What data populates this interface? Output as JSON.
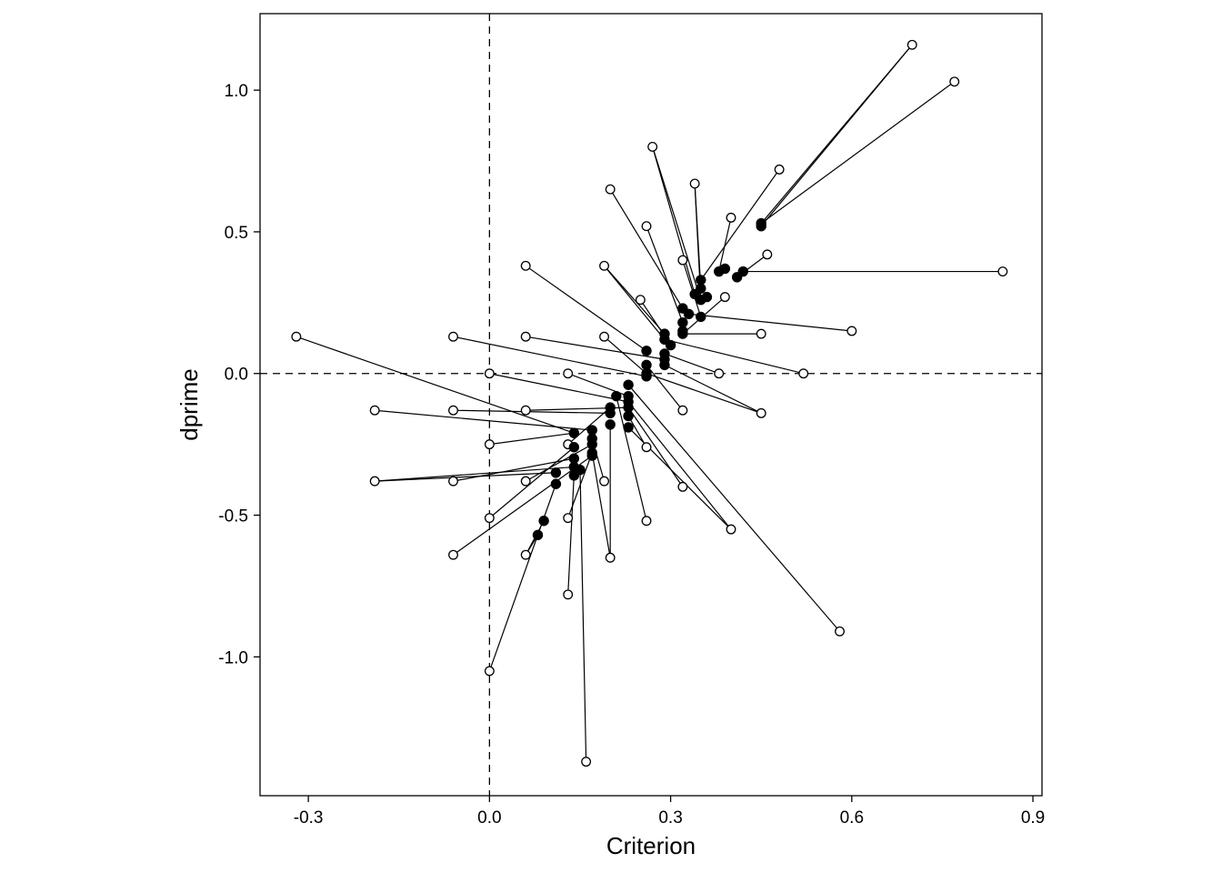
{
  "chart_data": {
    "type": "scatter",
    "xlabel": "Criterion",
    "ylabel": "dprime",
    "xlim": [
      -0.38,
      0.915
    ],
    "ylim": [
      -1.49,
      1.27
    ],
    "xticks": [
      -0.3,
      0.0,
      0.3,
      0.6,
      0.9
    ],
    "xtick_labels": [
      "-0.3",
      "0.0",
      "0.3",
      "0.6",
      "0.9"
    ],
    "yticks": [
      -1.0,
      -0.5,
      0.0,
      0.5,
      1.0
    ],
    "ytick_labels": [
      "-1.0",
      "-0.5",
      "0.0",
      "0.5",
      "1.0"
    ],
    "reference_lines": {
      "x": 0.0,
      "y": 0.0,
      "style": "dashed"
    },
    "grid": false,
    "legend": "none",
    "colors": {
      "filled": "#000000",
      "open_fill": "#ffffff",
      "stroke": "#000000"
    },
    "series": [
      {
        "marker": "open-circle",
        "values": [
          [
            0.7,
            1.16
          ],
          [
            0.77,
            1.03
          ],
          [
            0.27,
            0.8
          ],
          [
            0.48,
            0.72
          ],
          [
            0.34,
            0.67
          ],
          [
            0.2,
            0.65
          ],
          [
            0.4,
            0.55
          ],
          [
            0.26,
            0.52
          ],
          [
            0.46,
            0.42
          ],
          [
            0.32,
            0.4
          ],
          [
            0.19,
            0.38
          ],
          [
            0.06,
            0.38
          ],
          [
            0.85,
            0.36
          ],
          [
            0.39,
            0.27
          ],
          [
            0.25,
            0.26
          ],
          [
            0.6,
            0.15
          ],
          [
            0.45,
            0.14
          ],
          [
            0.06,
            0.13
          ],
          [
            0.19,
            0.13
          ],
          [
            -0.06,
            0.13
          ],
          [
            -0.32,
            0.13
          ],
          [
            0.0,
            0.0
          ],
          [
            0.13,
            0.0
          ],
          [
            0.38,
            0.0
          ],
          [
            0.52,
            0.0
          ],
          [
            -0.19,
            -0.13
          ],
          [
            -0.06,
            -0.13
          ],
          [
            0.06,
            -0.13
          ],
          [
            0.32,
            -0.13
          ],
          [
            0.45,
            -0.14
          ],
          [
            0.0,
            -0.25
          ],
          [
            0.13,
            -0.25
          ],
          [
            0.26,
            -0.26
          ],
          [
            -0.19,
            -0.38
          ],
          [
            -0.06,
            -0.38
          ],
          [
            0.06,
            -0.38
          ],
          [
            0.19,
            -0.38
          ],
          [
            0.32,
            -0.4
          ],
          [
            0.0,
            -0.51
          ],
          [
            0.13,
            -0.51
          ],
          [
            0.26,
            -0.52
          ],
          [
            0.4,
            -0.55
          ],
          [
            -0.06,
            -0.64
          ],
          [
            0.06,
            -0.64
          ],
          [
            0.2,
            -0.65
          ],
          [
            0.13,
            -0.78
          ],
          [
            0.58,
            -0.91
          ],
          [
            0.0,
            -1.05
          ],
          [
            0.16,
            -1.37
          ]
        ]
      },
      {
        "marker": "filled-circle",
        "values": [
          [
            0.45,
            0.53
          ],
          [
            0.45,
            0.52
          ],
          [
            0.39,
            0.37
          ],
          [
            0.38,
            0.36
          ],
          [
            0.42,
            0.36
          ],
          [
            0.41,
            0.34
          ],
          [
            0.35,
            0.33
          ],
          [
            0.35,
            0.3
          ],
          [
            0.34,
            0.28
          ],
          [
            0.36,
            0.27
          ],
          [
            0.35,
            0.26
          ],
          [
            0.32,
            0.23
          ],
          [
            0.33,
            0.21
          ],
          [
            0.35,
            0.2
          ],
          [
            0.32,
            0.18
          ],
          [
            0.32,
            0.15
          ],
          [
            0.32,
            0.14
          ],
          [
            0.29,
            0.14
          ],
          [
            0.29,
            0.12
          ],
          [
            0.3,
            0.1
          ],
          [
            0.26,
            0.08
          ],
          [
            0.29,
            0.07
          ],
          [
            0.29,
            0.05
          ],
          [
            0.26,
            0.03
          ],
          [
            0.29,
            0.03
          ],
          [
            0.26,
            0.0
          ],
          [
            0.26,
            -0.01
          ],
          [
            0.23,
            -0.04
          ],
          [
            0.21,
            -0.08
          ],
          [
            0.23,
            -0.08
          ],
          [
            0.23,
            -0.1
          ],
          [
            0.2,
            -0.12
          ],
          [
            0.23,
            -0.12
          ],
          [
            0.2,
            -0.14
          ],
          [
            0.23,
            -0.15
          ],
          [
            0.2,
            -0.18
          ],
          [
            0.23,
            -0.19
          ],
          [
            0.17,
            -0.2
          ],
          [
            0.14,
            -0.21
          ],
          [
            0.17,
            -0.23
          ],
          [
            0.17,
            -0.25
          ],
          [
            0.14,
            -0.26
          ],
          [
            0.17,
            -0.28
          ],
          [
            0.17,
            -0.29
          ],
          [
            0.14,
            -0.3
          ],
          [
            0.14,
            -0.33
          ],
          [
            0.15,
            -0.34
          ],
          [
            0.11,
            -0.35
          ],
          [
            0.14,
            -0.36
          ],
          [
            0.11,
            -0.39
          ],
          [
            0.09,
            -0.52
          ],
          [
            0.08,
            -0.57
          ]
        ]
      }
    ],
    "links": [
      [
        0.7,
        1.16,
        0.45,
        0.53
      ],
      [
        0.7,
        1.16,
        0.45,
        0.52
      ],
      [
        0.77,
        1.03,
        0.45,
        0.53
      ],
      [
        0.27,
        0.8,
        0.34,
        0.28
      ],
      [
        0.27,
        0.8,
        0.35,
        0.26
      ],
      [
        0.48,
        0.72,
        0.35,
        0.33
      ],
      [
        0.34,
        0.67,
        0.35,
        0.3
      ],
      [
        0.34,
        0.67,
        0.35,
        0.26
      ],
      [
        0.2,
        0.65,
        0.32,
        0.23
      ],
      [
        0.4,
        0.55,
        0.38,
        0.36
      ],
      [
        0.26,
        0.52,
        0.32,
        0.18
      ],
      [
        0.46,
        0.42,
        0.41,
        0.34
      ],
      [
        0.32,
        0.4,
        0.35,
        0.2
      ],
      [
        0.85,
        0.36,
        0.42,
        0.36
      ],
      [
        0.19,
        0.38,
        0.29,
        0.14
      ],
      [
        0.19,
        0.38,
        0.29,
        0.12
      ],
      [
        0.06,
        0.38,
        0.26,
        0.08
      ],
      [
        0.39,
        0.27,
        0.32,
        0.14
      ],
      [
        0.25,
        0.26,
        0.3,
        0.1
      ],
      [
        0.6,
        0.15,
        0.33,
        0.21
      ],
      [
        0.45,
        0.14,
        0.32,
        0.14
      ],
      [
        0.06,
        0.13,
        0.29,
        0.05
      ],
      [
        0.19,
        0.13,
        0.26,
        0.0
      ],
      [
        -0.06,
        0.13,
        0.26,
        -0.01
      ],
      [
        -0.32,
        0.13,
        0.14,
        -0.21
      ],
      [
        0.0,
        0.0,
        0.23,
        -0.1
      ],
      [
        0.13,
        0.0,
        0.23,
        -0.08
      ],
      [
        0.38,
        0.0,
        0.29,
        0.07
      ],
      [
        0.52,
        0.0,
        0.29,
        0.12
      ],
      [
        -0.19,
        -0.13,
        0.17,
        -0.2
      ],
      [
        -0.06,
        -0.13,
        0.2,
        -0.14
      ],
      [
        0.06,
        -0.13,
        0.23,
        -0.12
      ],
      [
        0.32,
        -0.13,
        0.26,
        0.03
      ],
      [
        0.45,
        -0.14,
        0.29,
        0.03
      ],
      [
        0.45,
        -0.14,
        0.26,
        0.0
      ],
      [
        0.0,
        -0.25,
        0.14,
        -0.21
      ],
      [
        0.13,
        -0.25,
        0.2,
        -0.12
      ],
      [
        0.26,
        -0.26,
        0.23,
        -0.15
      ],
      [
        -0.19,
        -0.38,
        0.14,
        -0.33
      ],
      [
        -0.19,
        -0.38,
        0.11,
        -0.35
      ],
      [
        -0.06,
        -0.38,
        0.14,
        -0.3
      ],
      [
        0.06,
        -0.38,
        0.17,
        -0.25
      ],
      [
        0.19,
        -0.38,
        0.17,
        -0.23
      ],
      [
        0.32,
        -0.4,
        0.23,
        -0.12
      ],
      [
        0.0,
        -0.51,
        0.14,
        -0.26
      ],
      [
        0.13,
        -0.51,
        0.17,
        -0.28
      ],
      [
        0.26,
        -0.52,
        0.21,
        -0.08
      ],
      [
        0.4,
        -0.55,
        0.23,
        -0.19
      ],
      [
        0.4,
        -0.55,
        0.23,
        -0.1
      ],
      [
        -0.06,
        -0.64,
        0.17,
        -0.29
      ],
      [
        0.06,
        -0.64,
        0.09,
        -0.52
      ],
      [
        0.06,
        -0.64,
        0.08,
        -0.57
      ],
      [
        0.2,
        -0.65,
        0.17,
        -0.28
      ],
      [
        0.2,
        -0.65,
        0.2,
        -0.18
      ],
      [
        0.13,
        -0.78,
        0.14,
        -0.36
      ],
      [
        0.58,
        -0.91,
        0.23,
        -0.04
      ],
      [
        0.0,
        -1.05,
        0.11,
        -0.39
      ],
      [
        0.16,
        -1.37,
        0.15,
        -0.34
      ]
    ]
  }
}
